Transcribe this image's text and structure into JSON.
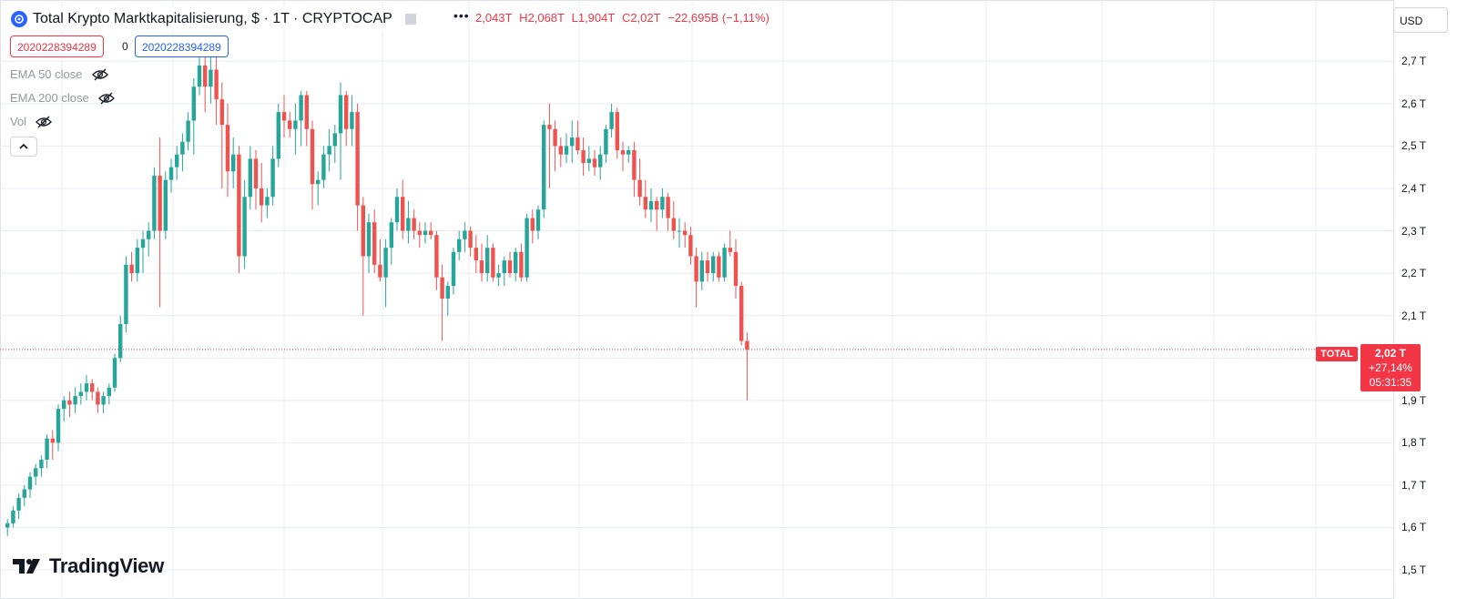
{
  "header": {
    "symbol_title": "Total Krypto Marktkapitalisierung, $ · 1T · CRYPTOCAP",
    "open": "2,043T",
    "high": "H2,068T",
    "low": "L1,904T",
    "close": "C2,02T",
    "change": "−22,695B (−1,11%)",
    "more_icon": "more-dots-icon",
    "flag_icon": "flag-icon"
  },
  "badges": {
    "left_value": "2020228394289",
    "middle_value": "0",
    "right_value": "2020228394289",
    "left_color": "#f23645",
    "right_color": "#2962ff"
  },
  "indicators": [
    {
      "label": "EMA 50 close",
      "icon": "eye-hidden-icon"
    },
    {
      "label": "EMA 200 close",
      "icon": "eye-hidden-icon"
    },
    {
      "label": "Vol",
      "icon": "eye-hidden-icon"
    }
  ],
  "currency": "USD",
  "price_tag": {
    "symbol": "TOTAL",
    "price": "2,02 T",
    "change_pct": "+27,14%",
    "countdown": "05:31:35"
  },
  "logo": {
    "text": "TradingView"
  },
  "colors": {
    "up": "#26a69a",
    "down": "#ef5350",
    "grid": "#e8edf3",
    "price_line": "#f23645"
  },
  "chart_data": {
    "type": "candlestick",
    "ylim": [
      1.47,
      2.78
    ],
    "yticks": [
      "2,7 T",
      "2,6 T",
      "2,5 T",
      "2,4 T",
      "2,3 T",
      "2,2 T",
      "2,1 T",
      "1,9 T",
      "1,8 T",
      "1,7 T",
      "1,6 T",
      "1,5 T"
    ],
    "ytick_values": [
      2.7,
      2.6,
      2.5,
      2.4,
      2.3,
      2.2,
      2.1,
      1.9,
      1.8,
      1.7,
      1.6,
      1.5
    ],
    "current_price": 2.02,
    "candles": [
      [
        1.6,
        1.62,
        1.58,
        1.61
      ],
      [
        1.61,
        1.65,
        1.6,
        1.64
      ],
      [
        1.64,
        1.68,
        1.62,
        1.67
      ],
      [
        1.67,
        1.7,
        1.65,
        1.69
      ],
      [
        1.69,
        1.73,
        1.67,
        1.72
      ],
      [
        1.72,
        1.75,
        1.7,
        1.74
      ],
      [
        1.74,
        1.77,
        1.72,
        1.76
      ],
      [
        1.76,
        1.82,
        1.74,
        1.81
      ],
      [
        1.81,
        1.83,
        1.76,
        1.8
      ],
      [
        1.8,
        1.89,
        1.78,
        1.88
      ],
      [
        1.88,
        1.91,
        1.85,
        1.9
      ],
      [
        1.9,
        1.92,
        1.86,
        1.89
      ],
      [
        1.89,
        1.93,
        1.87,
        1.91
      ],
      [
        1.91,
        1.94,
        1.89,
        1.92
      ],
      [
        1.92,
        1.96,
        1.9,
        1.94
      ],
      [
        1.94,
        1.95,
        1.9,
        1.92
      ],
      [
        1.92,
        1.93,
        1.87,
        1.89
      ],
      [
        1.89,
        1.92,
        1.87,
        1.91
      ],
      [
        1.91,
        1.94,
        1.89,
        1.93
      ],
      [
        1.93,
        2.01,
        1.92,
        2.0
      ],
      [
        2.0,
        2.1,
        1.99,
        2.08
      ],
      [
        2.08,
        2.24,
        2.06,
        2.22
      ],
      [
        2.22,
        2.25,
        2.18,
        2.2
      ],
      [
        2.2,
        2.28,
        2.18,
        2.26
      ],
      [
        2.26,
        2.3,
        2.2,
        2.28
      ],
      [
        2.28,
        2.32,
        2.24,
        2.3
      ],
      [
        2.3,
        2.45,
        2.28,
        2.43
      ],
      [
        2.43,
        2.52,
        2.12,
        2.3
      ],
      [
        2.3,
        2.44,
        2.28,
        2.42
      ],
      [
        2.42,
        2.47,
        2.39,
        2.45
      ],
      [
        2.45,
        2.5,
        2.42,
        2.48
      ],
      [
        2.48,
        2.53,
        2.44,
        2.51
      ],
      [
        2.51,
        2.58,
        2.49,
        2.56
      ],
      [
        2.56,
        2.66,
        2.48,
        2.64
      ],
      [
        2.64,
        2.71,
        2.62,
        2.69
      ],
      [
        2.69,
        2.72,
        2.58,
        2.64
      ],
      [
        2.64,
        2.71,
        2.6,
        2.68
      ],
      [
        2.68,
        2.72,
        2.55,
        2.61
      ],
      [
        2.61,
        2.65,
        2.4,
        2.55
      ],
      [
        2.55,
        2.6,
        2.38,
        2.44
      ],
      [
        2.44,
        2.52,
        2.4,
        2.48
      ],
      [
        2.48,
        2.5,
        2.2,
        2.24
      ],
      [
        2.24,
        2.42,
        2.21,
        2.38
      ],
      [
        2.38,
        2.5,
        2.35,
        2.47
      ],
      [
        2.47,
        2.49,
        2.35,
        2.4
      ],
      [
        2.4,
        2.46,
        2.32,
        2.36
      ],
      [
        2.36,
        2.4,
        2.33,
        2.38
      ],
      [
        2.38,
        2.5,
        2.36,
        2.47
      ],
      [
        2.47,
        2.6,
        2.45,
        2.58
      ],
      [
        2.58,
        2.62,
        2.52,
        2.56
      ],
      [
        2.56,
        2.58,
        2.52,
        2.54
      ],
      [
        2.54,
        2.6,
        2.48,
        2.56
      ],
      [
        2.56,
        2.63,
        2.5,
        2.62
      ],
      [
        2.62,
        2.63,
        2.5,
        2.54
      ],
      [
        2.54,
        2.56,
        2.35,
        2.41
      ],
      [
        2.41,
        2.44,
        2.36,
        2.42
      ],
      [
        2.42,
        2.5,
        2.4,
        2.48
      ],
      [
        2.48,
        2.54,
        2.44,
        2.5
      ],
      [
        2.5,
        2.55,
        2.46,
        2.53
      ],
      [
        2.53,
        2.65,
        2.42,
        2.62
      ],
      [
        2.62,
        2.63,
        2.5,
        2.54
      ],
      [
        2.54,
        2.62,
        2.5,
        2.58
      ],
      [
        2.58,
        2.6,
        2.3,
        2.36
      ],
      [
        2.36,
        2.38,
        2.1,
        2.24
      ],
      [
        2.24,
        2.34,
        2.2,
        2.32
      ],
      [
        2.32,
        2.35,
        2.2,
        2.22
      ],
      [
        2.22,
        2.28,
        2.18,
        2.19
      ],
      [
        2.19,
        2.28,
        2.12,
        2.26
      ],
      [
        2.26,
        2.33,
        2.22,
        2.32
      ],
      [
        2.32,
        2.4,
        2.3,
        2.38
      ],
      [
        2.38,
        2.42,
        2.28,
        2.3
      ],
      [
        2.3,
        2.37,
        2.27,
        2.33
      ],
      [
        2.33,
        2.35,
        2.28,
        2.3
      ],
      [
        2.3,
        2.32,
        2.26,
        2.29
      ],
      [
        2.29,
        2.32,
        2.27,
        2.3
      ],
      [
        2.3,
        2.32,
        2.28,
        2.29
      ],
      [
        2.29,
        2.3,
        2.16,
        2.19
      ],
      [
        2.19,
        2.22,
        2.04,
        2.14
      ],
      [
        2.14,
        2.18,
        2.1,
        2.17
      ],
      [
        2.17,
        2.26,
        2.15,
        2.25
      ],
      [
        2.25,
        2.3,
        2.23,
        2.28
      ],
      [
        2.28,
        2.32,
        2.25,
        2.3
      ],
      [
        2.3,
        2.31,
        2.24,
        2.26
      ],
      [
        2.26,
        2.29,
        2.2,
        2.23
      ],
      [
        2.23,
        2.27,
        2.18,
        2.2
      ],
      [
        2.2,
        2.29,
        2.18,
        2.26
      ],
      [
        2.26,
        2.27,
        2.18,
        2.19
      ],
      [
        2.19,
        2.22,
        2.17,
        2.2
      ],
      [
        2.2,
        2.24,
        2.17,
        2.23
      ],
      [
        2.23,
        2.25,
        2.19,
        2.2
      ],
      [
        2.2,
        2.26,
        2.18,
        2.25
      ],
      [
        2.25,
        2.27,
        2.18,
        2.19
      ],
      [
        2.19,
        2.34,
        2.18,
        2.33
      ],
      [
        2.33,
        2.35,
        2.27,
        2.3
      ],
      [
        2.3,
        2.36,
        2.28,
        2.35
      ],
      [
        2.35,
        2.56,
        2.33,
        2.55
      ],
      [
        2.55,
        2.6,
        2.4,
        2.54
      ],
      [
        2.54,
        2.56,
        2.44,
        2.5
      ],
      [
        2.5,
        2.52,
        2.45,
        2.48
      ],
      [
        2.48,
        2.53,
        2.46,
        2.5
      ],
      [
        2.5,
        2.56,
        2.46,
        2.52
      ],
      [
        2.52,
        2.56,
        2.48,
        2.49
      ],
      [
        2.49,
        2.52,
        2.43,
        2.46
      ],
      [
        2.46,
        2.5,
        2.44,
        2.47
      ],
      [
        2.47,
        2.49,
        2.43,
        2.45
      ],
      [
        2.45,
        2.5,
        2.42,
        2.48
      ],
      [
        2.48,
        2.55,
        2.46,
        2.54
      ],
      [
        2.54,
        2.6,
        2.52,
        2.58
      ],
      [
        2.58,
        2.59,
        2.47,
        2.49
      ],
      [
        2.49,
        2.51,
        2.44,
        2.48
      ],
      [
        2.48,
        2.5,
        2.46,
        2.49
      ],
      [
        2.49,
        2.51,
        2.38,
        2.42
      ],
      [
        2.42,
        2.47,
        2.36,
        2.38
      ],
      [
        2.38,
        2.42,
        2.33,
        2.35
      ],
      [
        2.35,
        2.4,
        2.32,
        2.37
      ],
      [
        2.37,
        2.38,
        2.3,
        2.35
      ],
      [
        2.35,
        2.4,
        2.33,
        2.38
      ],
      [
        2.38,
        2.39,
        2.3,
        2.33
      ],
      [
        2.33,
        2.37,
        2.28,
        2.3
      ],
      [
        2.3,
        2.33,
        2.26,
        2.3
      ],
      [
        2.3,
        2.32,
        2.26,
        2.29
      ],
      [
        2.29,
        2.31,
        2.22,
        2.24
      ],
      [
        2.24,
        2.26,
        2.12,
        2.18
      ],
      [
        2.18,
        2.25,
        2.16,
        2.23
      ],
      [
        2.23,
        2.25,
        2.18,
        2.2
      ],
      [
        2.2,
        2.25,
        2.18,
        2.24
      ],
      [
        2.24,
        2.25,
        2.18,
        2.19
      ],
      [
        2.19,
        2.27,
        2.18,
        2.26
      ],
      [
        2.26,
        2.3,
        2.24,
        2.25
      ],
      [
        2.25,
        2.28,
        2.14,
        2.17
      ],
      [
        2.17,
        2.18,
        2.03,
        2.04
      ],
      [
        2.04,
        2.06,
        1.9,
        2.02
      ]
    ]
  }
}
